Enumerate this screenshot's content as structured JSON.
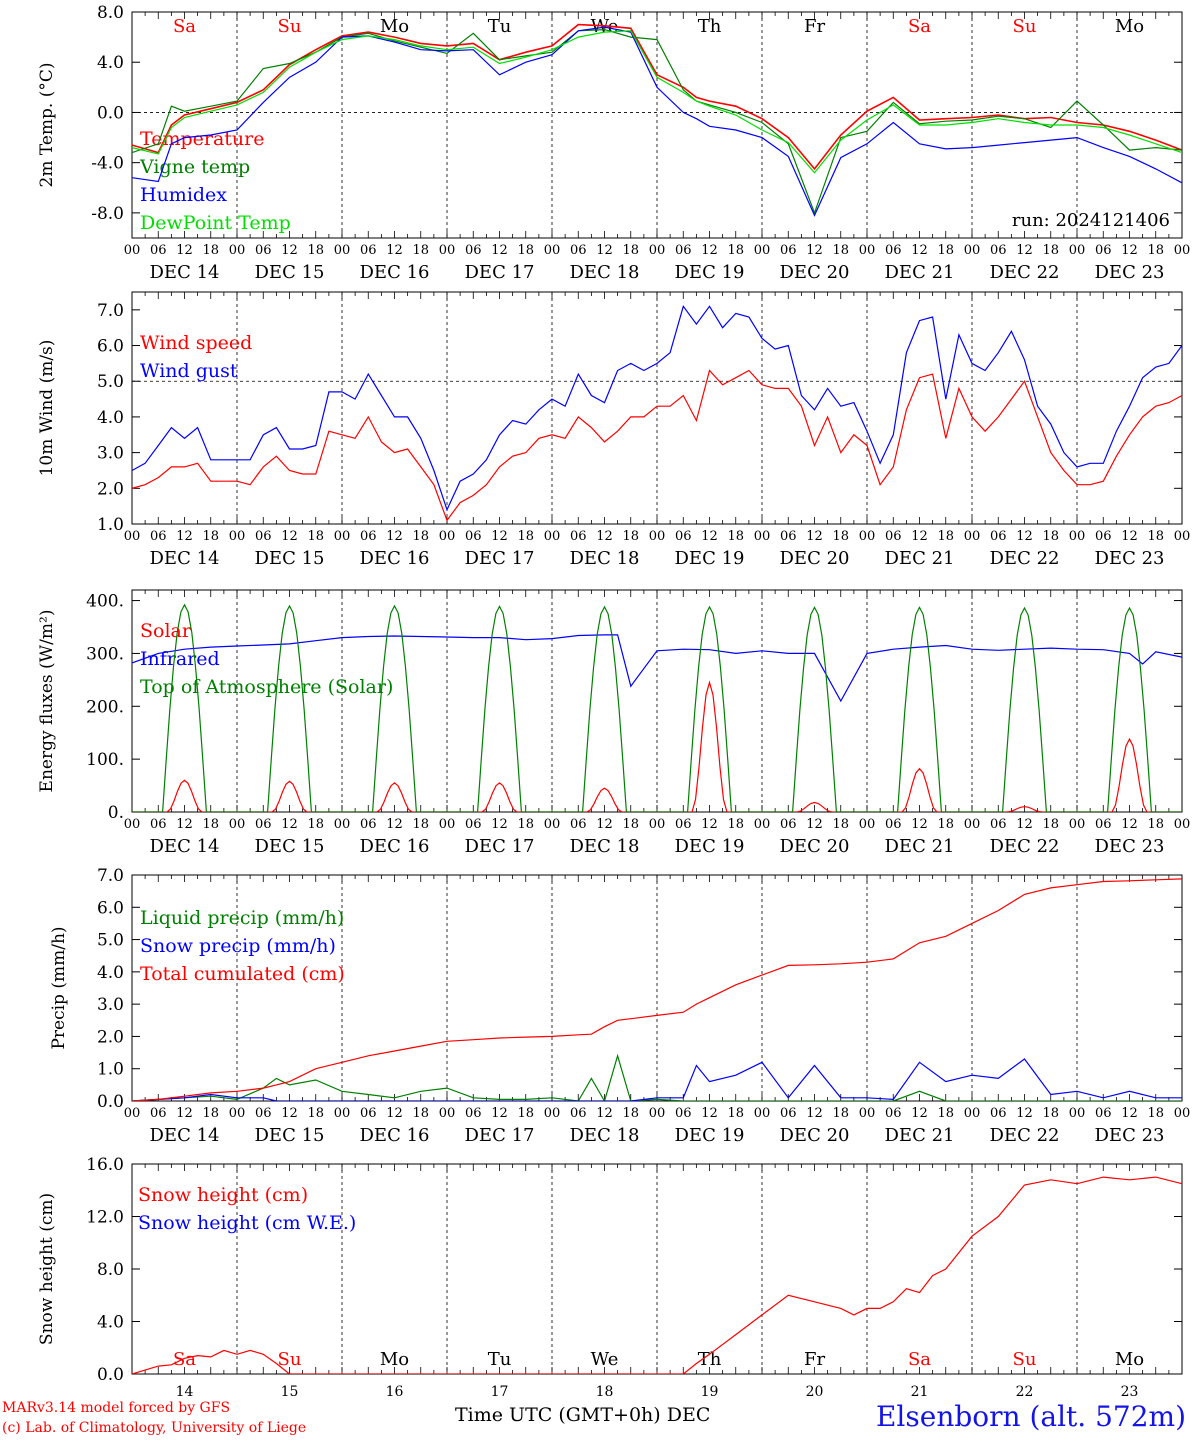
{
  "footer": {
    "credit_line1": "MARv3.14 model forced by GFS",
    "credit_line2": "(c) Lab. of Climatology, University of Liege",
    "time_axis_title": "Time UTC (GMT+0h) DEC",
    "station": "Elsenborn (alt. 572m)"
  },
  "colors": {
    "red": "#ff0000",
    "green": "#008000",
    "blue": "#0000ff",
    "light_green": "#00e000"
  },
  "time_axis": {
    "hour_labels": [
      "00",
      "06",
      "12",
      "18"
    ],
    "end_label": "00",
    "day_labels": [
      "DEC 14",
      "DEC 15",
      "DEC 16",
      "DEC 17",
      "DEC 18",
      "DEC 19",
      "DEC 20",
      "DEC 21",
      "DEC 22",
      "DEC 23"
    ],
    "weekdays": [
      "Sa",
      "Su",
      "Mo",
      "Tu",
      "We",
      "Th",
      "Fr",
      "Sa",
      "Su",
      "Mo"
    ],
    "weekday_colors": [
      "#ff0000",
      "#ff0000",
      "#000000",
      "#000000",
      "#000000",
      "#000000",
      "#000000",
      "#ff0000",
      "#ff0000",
      "#000000"
    ],
    "snow_panel_day_numbers": [
      "14",
      "15",
      "16",
      "17",
      "18",
      "19",
      "20",
      "21",
      "22",
      "23"
    ]
  },
  "chart_data": [
    {
      "type": "line",
      "ylabel": "2m Temp. (°C)",
      "ylim": [
        -10,
        8
      ],
      "yticks": [
        -8,
        -4,
        0,
        4,
        8
      ],
      "ytick_labels": [
        "-8.0",
        "-4.0",
        "0.0",
        "4.0",
        "8.0"
      ],
      "ref_line": 0,
      "annotation": "run: 2024121406",
      "x_hours_from_dec14_00": [
        0,
        6,
        9,
        12,
        18,
        24,
        30,
        36,
        42,
        48,
        54,
        60,
        66,
        72,
        78,
        84,
        90,
        96,
        102,
        108,
        114,
        120,
        126,
        129,
        132,
        138,
        144,
        150,
        156,
        162,
        168,
        174,
        180,
        186,
        192,
        198,
        204,
        210,
        216,
        222,
        228,
        234,
        240
      ],
      "series": [
        {
          "name": "Temperature",
          "color": "#ff0000",
          "values": [
            -2.6,
            -3.2,
            -1.0,
            -0.2,
            0.3,
            0.8,
            1.8,
            3.8,
            5.0,
            6.1,
            6.4,
            6.0,
            5.5,
            5.3,
            5.5,
            4.2,
            4.8,
            5.3,
            7.0,
            6.9,
            6.7,
            3.0,
            2.0,
            1.2,
            0.9,
            0.5,
            -0.5,
            -2.0,
            -4.5,
            -1.8,
            0.1,
            1.2,
            -0.6,
            -0.5,
            -0.4,
            -0.2,
            -0.5,
            -0.4,
            -0.8,
            -1.0,
            -1.5,
            -2.2,
            -3.0
          ]
        },
        {
          "name": "Vigne temp",
          "color": "#008000",
          "values": [
            -3.2,
            -2.5,
            0.5,
            0.1,
            0.5,
            0.9,
            3.5,
            3.9,
            4.8,
            6.0,
            6.3,
            5.7,
            5.2,
            4.7,
            6.3,
            4.2,
            4.5,
            4.8,
            6.5,
            6.6,
            6.0,
            5.8,
            1.8,
            0.9,
            0.6,
            0.0,
            -0.8,
            -2.5,
            -8.0,
            -2.0,
            -1.5,
            0.8,
            -0.9,
            -0.7,
            -0.6,
            -0.3,
            -0.5,
            -1.2,
            0.9,
            -1.0,
            -3.0,
            -2.8,
            -3.0
          ]
        },
        {
          "name": "Humidex",
          "color": "#0000ff",
          "values": [
            -5.2,
            -5.5,
            -2.5,
            -2.0,
            -1.8,
            -1.4,
            0.8,
            2.8,
            4.0,
            6.0,
            6.1,
            5.6,
            5.0,
            4.9,
            5.0,
            3.0,
            4.0,
            4.6,
            6.5,
            6.8,
            6.4,
            2.0,
            0.0,
            -0.5,
            -1.1,
            -1.4,
            -2.0,
            -3.5,
            -8.2,
            -3.6,
            -2.5,
            -0.8,
            -2.5,
            -2.9,
            -2.8,
            -2.6,
            -2.4,
            -2.2,
            -2.0,
            -2.8,
            -3.5,
            -4.5,
            -5.6
          ]
        },
        {
          "name": "DewPoint Temp",
          "color": "#00e000",
          "values": [
            -2.8,
            -3.3,
            -1.2,
            -0.4,
            0.1,
            0.6,
            1.6,
            3.6,
            4.8,
            5.8,
            6.1,
            5.8,
            5.3,
            5.0,
            5.2,
            3.9,
            4.4,
            5.0,
            6.0,
            6.4,
            6.5,
            2.8,
            1.6,
            0.9,
            0.5,
            -0.2,
            -1.4,
            -2.4,
            -4.8,
            -2.2,
            -0.6,
            0.6,
            -1.0,
            -1.0,
            -0.8,
            -0.5,
            -0.8,
            -1.0,
            -1.0,
            -1.2,
            -1.8,
            -2.5,
            -3.2
          ]
        }
      ]
    },
    {
      "type": "line",
      "ylabel": "10m Wind (m/s)",
      "ylim": [
        1.0,
        7.5
      ],
      "yticks": [
        1,
        2,
        3,
        4,
        5,
        6,
        7
      ],
      "ytick_labels": [
        "1.0",
        "2.0",
        "3.0",
        "4.0",
        "5.0",
        "6.0",
        "7.0"
      ],
      "ref_line": 5,
      "x_hours_from_dec14_00": [
        0,
        3,
        6,
        9,
        12,
        15,
        18,
        21,
        24,
        27,
        30,
        33,
        36,
        39,
        42,
        45,
        48,
        51,
        54,
        57,
        60,
        63,
        66,
        69,
        72,
        75,
        78,
        81,
        84,
        87,
        90,
        93,
        96,
        99,
        102,
        105,
        108,
        111,
        114,
        117,
        120,
        123,
        126,
        129,
        132,
        135,
        138,
        141,
        144,
        147,
        150,
        153,
        156,
        159,
        162,
        165,
        168,
        171,
        174,
        177,
        180,
        183,
        186,
        189,
        192,
        195,
        198,
        201,
        204,
        207,
        210,
        213,
        216,
        219,
        222,
        225,
        228,
        231,
        234,
        237,
        240
      ],
      "series": [
        {
          "name": "Wind speed",
          "color": "#ff0000",
          "values": [
            2.0,
            2.1,
            2.3,
            2.6,
            2.6,
            2.7,
            2.2,
            2.2,
            2.2,
            2.1,
            2.6,
            2.9,
            2.5,
            2.4,
            2.4,
            3.6,
            3.5,
            3.4,
            4.0,
            3.3,
            3.0,
            3.1,
            2.6,
            2.1,
            1.1,
            1.6,
            1.8,
            2.1,
            2.6,
            2.9,
            3.0,
            3.4,
            3.5,
            3.4,
            4.0,
            3.7,
            3.3,
            3.6,
            4.0,
            4.0,
            4.3,
            4.3,
            4.6,
            3.9,
            5.3,
            4.9,
            5.1,
            5.3,
            4.9,
            4.8,
            4.8,
            4.3,
            3.2,
            4.0,
            3.0,
            3.5,
            3.2,
            2.1,
            2.6,
            4.2,
            5.1,
            5.2,
            3.4,
            4.8,
            4.0,
            3.6,
            4.0,
            4.5,
            5.0,
            4.0,
            3.0,
            2.5,
            2.1,
            2.1,
            2.2,
            2.9,
            3.5,
            4.0,
            4.3,
            4.4,
            4.6
          ]
        },
        {
          "name": "Wind gust",
          "color": "#0000ff",
          "values": [
            2.5,
            2.7,
            3.2,
            3.7,
            3.4,
            3.7,
            2.8,
            2.8,
            2.8,
            2.8,
            3.5,
            3.7,
            3.1,
            3.1,
            3.2,
            4.7,
            4.7,
            4.5,
            5.2,
            4.6,
            4.0,
            4.0,
            3.4,
            2.5,
            1.4,
            2.2,
            2.4,
            2.8,
            3.5,
            3.9,
            3.8,
            4.2,
            4.5,
            4.3,
            5.2,
            4.6,
            4.4,
            5.3,
            5.5,
            5.3,
            5.5,
            5.8,
            7.1,
            6.6,
            7.1,
            6.5,
            6.9,
            6.8,
            6.2,
            5.9,
            6.0,
            4.6,
            4.2,
            4.8,
            4.3,
            4.4,
            3.6,
            2.7,
            3.5,
            5.8,
            6.7,
            6.8,
            4.5,
            6.3,
            5.5,
            5.3,
            5.8,
            6.4,
            5.6,
            4.3,
            3.8,
            3.0,
            2.6,
            2.7,
            2.7,
            3.6,
            4.3,
            5.1,
            5.4,
            5.5,
            6.0
          ]
        }
      ]
    },
    {
      "type": "line",
      "ylabel": "Energy fluxes (W/m²)",
      "ylim": [
        0,
        420
      ],
      "yticks": [
        0,
        100,
        200,
        300,
        400
      ],
      "ytick_labels": [
        "0.",
        "100.",
        "200.",
        "300.",
        "400."
      ],
      "x_hours_from_dec14_00": [
        0,
        6,
        12,
        18,
        24,
        30,
        36,
        42,
        48,
        54,
        60,
        66,
        72,
        78,
        84,
        90,
        96,
        102,
        108,
        111,
        114,
        120,
        126,
        132,
        138,
        144,
        150,
        156,
        162,
        168,
        174,
        180,
        186,
        192,
        198,
        204,
        210,
        216,
        222,
        228,
        231,
        234,
        240
      ],
      "series": [
        {
          "name": "Solar",
          "color": "#ff0000",
          "peaks": [
            {
              "day": 0,
              "peak": 60
            },
            {
              "day": 1,
              "peak": 58
            },
            {
              "day": 2,
              "peak": 55
            },
            {
              "day": 3,
              "peak": 55
            },
            {
              "day": 4,
              "peak": 45
            },
            {
              "day": 5,
              "peak": 245
            },
            {
              "day": 6,
              "peak": 18
            },
            {
              "day": 7,
              "peak": 82
            },
            {
              "day": 8,
              "peak": 10
            },
            {
              "day": 9,
              "peak": 138
            }
          ]
        },
        {
          "name": "Infrared",
          "color": "#0000ff",
          "values": [
            282,
            300,
            308,
            312,
            314,
            316,
            318,
            324,
            330,
            332,
            333,
            332,
            331,
            330,
            330,
            326,
            328,
            334,
            335,
            335,
            238,
            305,
            308,
            307,
            300,
            305,
            300,
            300,
            210,
            300,
            308,
            312,
            315,
            308,
            306,
            308,
            310,
            308,
            307,
            300,
            280,
            303,
            293
          ]
        },
        {
          "name": "Top of Atmosphere (Solar)",
          "color": "#008000",
          "peaks": [
            {
              "day": 0,
              "peak": 392
            },
            {
              "day": 1,
              "peak": 390
            },
            {
              "day": 2,
              "peak": 390
            },
            {
              "day": 3,
              "peak": 389
            },
            {
              "day": 4,
              "peak": 388
            },
            {
              "day": 5,
              "peak": 388
            },
            {
              "day": 6,
              "peak": 387
            },
            {
              "day": 7,
              "peak": 387
            },
            {
              "day": 8,
              "peak": 386
            },
            {
              "day": 9,
              "peak": 386
            }
          ]
        }
      ]
    },
    {
      "type": "line",
      "ylabel": "Precip (mm/h)",
      "ylim": [
        0,
        7
      ],
      "yticks": [
        0,
        1,
        2,
        3,
        4,
        5,
        6,
        7
      ],
      "ytick_labels": [
        "0.0",
        "1.0",
        "2.0",
        "3.0",
        "4.0",
        "5.0",
        "6.0",
        "7.0"
      ],
      "x_hours_from_dec14_00": [
        0,
        6,
        12,
        18,
        24,
        30,
        33,
        36,
        42,
        48,
        54,
        60,
        66,
        72,
        78,
        84,
        90,
        96,
        102,
        105,
        108,
        111,
        114,
        120,
        126,
        129,
        132,
        138,
        144,
        150,
        156,
        162,
        168,
        174,
        180,
        186,
        192,
        198,
        204,
        210,
        216,
        222,
        228,
        234,
        240
      ],
      "series": [
        {
          "name": "Liquid precip (mm/h)",
          "color": "#008000",
          "values": [
            0.0,
            0.05,
            0.1,
            0.15,
            0.05,
            0.4,
            0.7,
            0.5,
            0.65,
            0.3,
            0.2,
            0.1,
            0.3,
            0.4,
            0.1,
            0.05,
            0.05,
            0.1,
            0.0,
            0.7,
            0.0,
            1.4,
            0.0,
            0.05,
            0.0,
            0.0,
            0.0,
            0.0,
            0.0,
            0.0,
            0.0,
            0.0,
            0.0,
            0.0,
            0.3,
            0.0,
            0.0,
            0.0,
            0.0,
            0.0,
            0.0,
            0.0,
            0.0,
            0.0,
            0.0
          ]
        },
        {
          "name": "Snow precip (mm/h)",
          "color": "#0000ff",
          "values": [
            0.0,
            0.05,
            0.1,
            0.2,
            0.1,
            0.1,
            0.0,
            0.0,
            0.0,
            0.0,
            0.0,
            0.0,
            0.0,
            0.0,
            0.0,
            0.0,
            0.0,
            0.0,
            0.0,
            0.0,
            0.0,
            0.0,
            0.0,
            0.1,
            0.1,
            1.1,
            0.6,
            0.8,
            1.2,
            0.1,
            1.1,
            0.1,
            0.1,
            0.05,
            1.2,
            0.6,
            0.8,
            0.7,
            1.3,
            0.2,
            0.3,
            0.1,
            0.3,
            0.1,
            0.1
          ]
        },
        {
          "name": "Total cumulated (cm)",
          "color": "#ff0000",
          "values": [
            0.0,
            0.05,
            0.15,
            0.25,
            0.3,
            0.4,
            0.5,
            0.6,
            1.0,
            1.2,
            1.4,
            1.55,
            1.7,
            1.85,
            1.9,
            1.95,
            1.98,
            2.0,
            2.05,
            2.07,
            2.3,
            2.5,
            2.55,
            2.65,
            2.75,
            3.0,
            3.2,
            3.6,
            3.9,
            4.2,
            4.22,
            4.25,
            4.3,
            4.4,
            4.9,
            5.1,
            5.5,
            5.9,
            6.4,
            6.6,
            6.7,
            6.8,
            6.82,
            6.85,
            6.88
          ]
        }
      ]
    },
    {
      "type": "line",
      "ylabel": "Snow height (cm)",
      "ylim": [
        0,
        16
      ],
      "yticks": [
        0,
        4,
        8,
        12,
        16
      ],
      "ytick_labels": [
        "0.0",
        "4.0",
        "8.0",
        "12.0",
        "16.0"
      ],
      "x_hours_from_dec14_00": [
        0,
        6,
        9,
        12,
        15,
        18,
        21,
        24,
        27,
        30,
        33,
        36,
        42,
        48,
        60,
        72,
        84,
        96,
        108,
        120,
        126,
        129,
        132,
        138,
        144,
        150,
        156,
        162,
        165,
        168,
        171,
        174,
        177,
        180,
        183,
        186,
        192,
        198,
        204,
        210,
        216,
        222,
        228,
        234,
        240
      ],
      "series": [
        {
          "name": "Snow height (cm)",
          "color": "#ff0000",
          "values": [
            0.0,
            0.6,
            0.7,
            1.2,
            1.4,
            1.3,
            1.8,
            1.5,
            1.8,
            1.5,
            0.8,
            0.0,
            0.0,
            0.0,
            0.0,
            0.0,
            0.0,
            0.0,
            0.0,
            0.0,
            0.0,
            0.8,
            1.5,
            3.0,
            4.5,
            6.0,
            5.5,
            5.0,
            4.5,
            5.0,
            5.0,
            5.5,
            6.5,
            6.2,
            7.5,
            8.0,
            10.5,
            12.0,
            14.4,
            14.8,
            14.5,
            15.0,
            14.8,
            15.0,
            14.5
          ]
        },
        {
          "name": "Snow height (cm W.E.)",
          "color": "#0000ff",
          "values": []
        }
      ]
    }
  ]
}
